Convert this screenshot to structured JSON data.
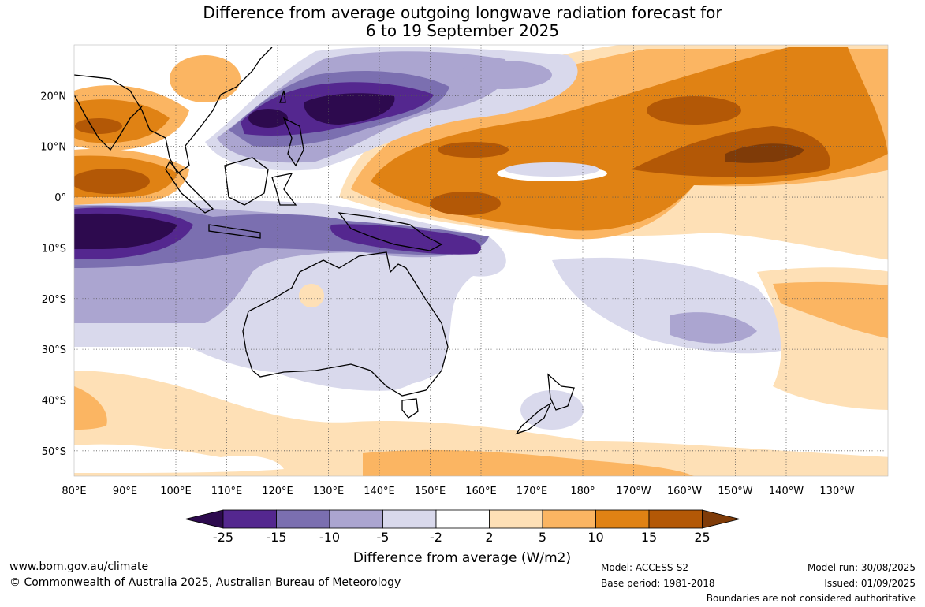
{
  "title": {
    "line1": "Difference from average outgoing longwave radiation forecast for",
    "line2": "6 to 19 September 2025"
  },
  "map": {
    "lon_range": [
      80,
      240
    ],
    "lat_range": [
      -55,
      30
    ],
    "lon_ticks": [
      "80°E",
      "90°E",
      "100°E",
      "110°E",
      "120°E",
      "130°E",
      "140°E",
      "150°E",
      "160°E",
      "170°E",
      "180°",
      "170°W",
      "160°W",
      "150°W",
      "140°W",
      "130°W"
    ],
    "lat_ticks": [
      {
        "lat": 20,
        "label": "20°N"
      },
      {
        "lat": 10,
        "label": "10°N"
      },
      {
        "lat": 0,
        "label": "0°"
      },
      {
        "lat": -10,
        "label": "10°S"
      },
      {
        "lat": -20,
        "label": "20°S"
      },
      {
        "lat": -30,
        "label": "30°S"
      },
      {
        "lat": -40,
        "label": "40°S"
      },
      {
        "lat": -50,
        "label": "50°S"
      }
    ],
    "colors": {
      "lt_-25": "#2d0a4e",
      "-25_-15": "#54278f",
      "-15_-10": "#7b6fb0",
      "-10_-5": "#aba5d0",
      "-5_-2": "#d9d9ec",
      "-2_2": "#ffffff",
      "2_5": "#fee0b6",
      "5_10": "#fbb562",
      "10_15": "#e08214",
      "15_25": "#b35806",
      "gt_25": "#7f3b08"
    }
  },
  "legend": {
    "ticks": [
      "-25",
      "-15",
      "-10",
      "-5",
      "-2",
      "2",
      "5",
      "10",
      "15",
      "25"
    ],
    "label": "Difference from average (W/m2)"
  },
  "footer": {
    "website": "www.bom.gov.au/climate",
    "copyright": "© Commonwealth of Australia 2025, Australian Bureau of Meteorology",
    "model": "Model: ACCESS-S2",
    "base_period": "Base period: 1981-2018",
    "model_run": "Model run: 30/08/2025",
    "issued": "Issued: 01/09/2025",
    "disclaimer": "Boundaries are not considered authoritative"
  }
}
